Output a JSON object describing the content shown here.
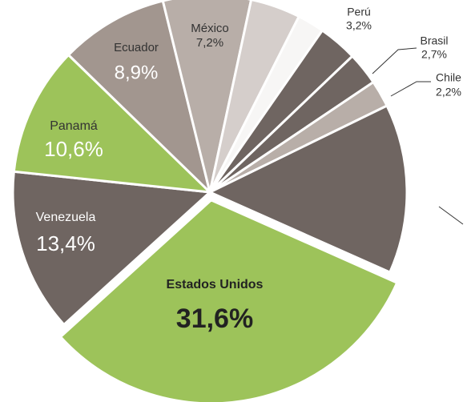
{
  "chart_data": {
    "type": "pie",
    "categories": [
      "Estados Unidos",
      "Venezuela",
      "Panamá",
      "Ecuador",
      "México",
      null,
      null,
      "Perú",
      "Brasil",
      "Chile",
      null
    ],
    "values": [
      31.6,
      13.4,
      10.6,
      8.9,
      7.2,
      4.1,
      2.2,
      3.2,
      2.7,
      2.2,
      13.9
    ],
    "value_labels": [
      "31,6%",
      "13,4%",
      "10,6%",
      "8,9%",
      "7,2%",
      null,
      null,
      "3,2%",
      "2,7%",
      "2,2%",
      null
    ],
    "colors": [
      "#9dc35a",
      "#6f6561",
      "#9dc35a",
      "#a2968f",
      "#b8aea8",
      "#d5cecb",
      "#f7f6f5",
      "#6f6561",
      "#6f6561",
      "#b8aea8",
      "#6f6561"
    ]
  }
}
